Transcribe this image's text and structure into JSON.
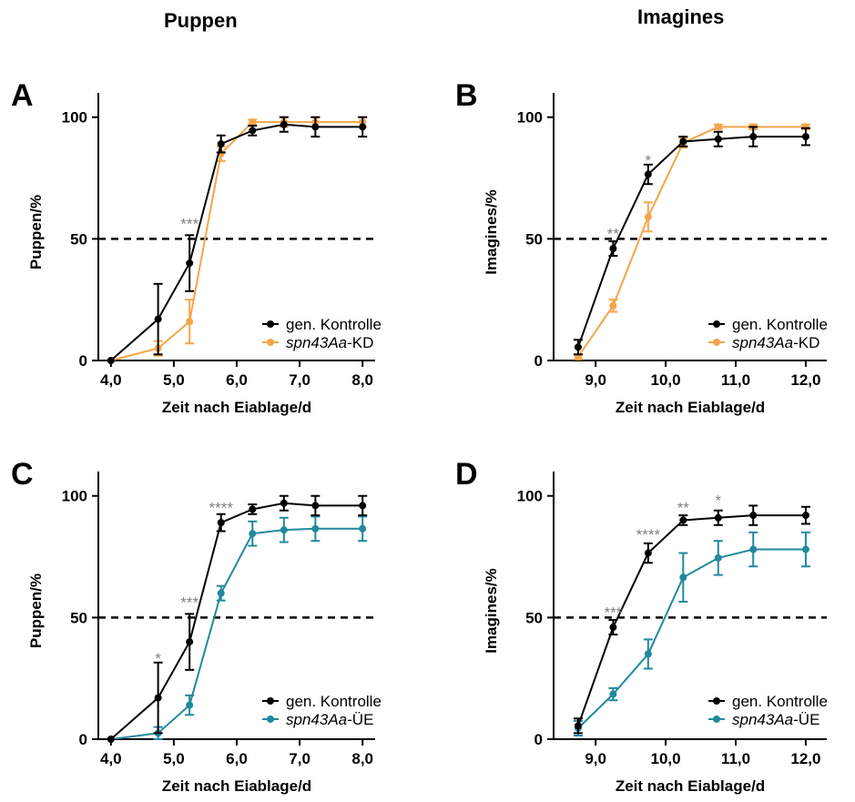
{
  "column_titles": {
    "left": "Puppen",
    "right": "Imagines"
  },
  "colors": {
    "control": "#000000",
    "kd": "#f5a54a",
    "ue": "#21899e",
    "significance": "#808080",
    "threshold": "#000000"
  },
  "chart_data": [
    {
      "panel": "A",
      "type": "line",
      "xlabel": "Zeit nach Eiablage/d",
      "ylabel": "Puppen/%",
      "xlim": [
        3.8,
        8.2
      ],
      "ylim": [
        0,
        110
      ],
      "xticks": [
        "4,0",
        "5,0",
        "6,0",
        "7,0",
        "8,0"
      ],
      "xtick_values": [
        4,
        5,
        6,
        7,
        8
      ],
      "yticks": [
        "0",
        "50",
        "100"
      ],
      "ytick_values": [
        0,
        50,
        100
      ],
      "threshold": 50,
      "series": [
        {
          "name": "gen. Kontrolle",
          "x": [
            4.0,
            4.75,
            5.25,
            5.75,
            6.25,
            6.75,
            7.25,
            8.0
          ],
          "y": [
            0,
            17,
            40,
            89,
            94.5,
            97,
            96,
            96
          ],
          "err": [
            0,
            14.5,
            11.5,
            3.5,
            2,
            3,
            4,
            4
          ]
        },
        {
          "name_italic": "spn43Aa",
          "name_suffix": "-KD",
          "x": [
            4.0,
            4.75,
            5.25,
            5.75,
            6.25,
            6.75,
            7.25,
            8.0
          ],
          "y": [
            0,
            5,
            16,
            85,
            98,
            98,
            98,
            98
          ],
          "err": [
            0,
            3,
            9,
            3,
            1,
            2,
            2,
            2
          ]
        }
      ],
      "annotations": [
        {
          "x": 5.25,
          "y": 57,
          "text": "***"
        }
      ],
      "legend": "bottom-right"
    },
    {
      "panel": "B",
      "type": "line",
      "xlabel": "Zeit nach Eiablage/d",
      "ylabel": "Imagines/%",
      "xlim": [
        8.4,
        12.3
      ],
      "ylim": [
        0,
        110
      ],
      "xticks": [
        "9,0",
        "10,0",
        "11,0",
        "12,0"
      ],
      "xtick_values": [
        9,
        10,
        11,
        12
      ],
      "yticks": [
        "0",
        "50",
        "100"
      ],
      "ytick_values": [
        0,
        50,
        100
      ],
      "threshold": 50,
      "series": [
        {
          "name": "gen. Kontrolle",
          "x": [
            8.75,
            9.25,
            9.75,
            10.25,
            10.75,
            11.25,
            12.0
          ],
          "y": [
            5.5,
            46,
            76.5,
            90,
            91,
            92,
            92
          ],
          "err": [
            3,
            3,
            4,
            2,
            3,
            4,
            3.5
          ]
        },
        {
          "name_italic": "spn43Aa",
          "name_suffix": "-KD",
          "x": [
            8.75,
            9.25,
            9.75,
            10.25,
            10.75,
            11.25,
            12.0
          ],
          "y": [
            1.5,
            22.5,
            59,
            89.5,
            96,
            96,
            96
          ],
          "err": [
            1,
            2.5,
            6,
            2,
            1,
            1,
            1
          ]
        }
      ],
      "annotations": [
        {
          "x": 9.25,
          "y": 53,
          "text": "**"
        },
        {
          "x": 9.75,
          "y": 83,
          "text": "*"
        }
      ],
      "legend": "bottom-right"
    },
    {
      "panel": "C",
      "type": "line",
      "xlabel": "Zeit nach Eiablage/d",
      "ylabel": "Puppen/%",
      "xlim": [
        3.8,
        8.2
      ],
      "ylim": [
        0,
        110
      ],
      "xticks": [
        "4,0",
        "5,0",
        "6,0",
        "7,0",
        "8,0"
      ],
      "xtick_values": [
        4,
        5,
        6,
        7,
        8
      ],
      "yticks": [
        "0",
        "50",
        "100"
      ],
      "ytick_values": [
        0,
        50,
        100
      ],
      "threshold": 50,
      "series": [
        {
          "name": "gen. Kontrolle",
          "x": [
            4.0,
            4.75,
            5.25,
            5.75,
            6.25,
            6.75,
            7.25,
            8.0
          ],
          "y": [
            0,
            17,
            40,
            89,
            94.5,
            97,
            96,
            96
          ],
          "err": [
            0,
            14.5,
            11.5,
            3.5,
            2,
            3,
            4,
            4
          ]
        },
        {
          "name_italic": "spn43Aa",
          "name_suffix": "-ÜE",
          "x": [
            4.0,
            4.75,
            5.25,
            5.75,
            6.25,
            6.75,
            7.25,
            8.0
          ],
          "y": [
            0,
            2.5,
            14,
            60,
            84.5,
            86,
            86.5,
            86.5
          ],
          "err": [
            0,
            2.5,
            4,
            3,
            5,
            5,
            5,
            5
          ]
        }
      ],
      "annotations": [
        {
          "x": 4.75,
          "y": 34,
          "text": "*"
        },
        {
          "x": 5.25,
          "y": 57,
          "text": "***"
        },
        {
          "x": 5.75,
          "y": 96,
          "text": "****"
        }
      ],
      "legend": "bottom-right"
    },
    {
      "panel": "D",
      "type": "line",
      "xlabel": "Zeit nach Eiablage/d",
      "ylabel": "Imagines/%",
      "xlim": [
        8.4,
        12.3
      ],
      "ylim": [
        0,
        110
      ],
      "xticks": [
        "9,0",
        "10,0",
        "11,0",
        "12,0"
      ],
      "xtick_values": [
        9,
        10,
        11,
        12
      ],
      "yticks": [
        "0",
        "50",
        "100"
      ],
      "ytick_values": [
        0,
        50,
        100
      ],
      "threshold": 50,
      "series": [
        {
          "name": "gen. Kontrolle",
          "x": [
            8.75,
            9.25,
            9.75,
            10.25,
            10.75,
            11.25,
            12.0
          ],
          "y": [
            5.5,
            46,
            76.5,
            90,
            91,
            92,
            92
          ],
          "err": [
            3,
            3,
            4,
            2,
            3,
            4,
            3.5
          ]
        },
        {
          "name_italic": "spn43Aa",
          "name_suffix": "-ÜE",
          "x": [
            8.75,
            9.25,
            9.75,
            10.25,
            10.75,
            11.25,
            12.0
          ],
          "y": [
            4.5,
            18.5,
            35,
            66.5,
            74.5,
            78,
            78
          ],
          "err": [
            3,
            2.5,
            6,
            10,
            7,
            7,
            7
          ]
        }
      ],
      "annotations": [
        {
          "x": 9.25,
          "y": 53,
          "text": "***"
        },
        {
          "x": 9.75,
          "y": 85,
          "text": "****"
        },
        {
          "x": 10.25,
          "y": 96,
          "text": "**"
        },
        {
          "x": 10.75,
          "y": 99,
          "text": "*"
        }
      ],
      "legend": "bottom-right"
    }
  ]
}
